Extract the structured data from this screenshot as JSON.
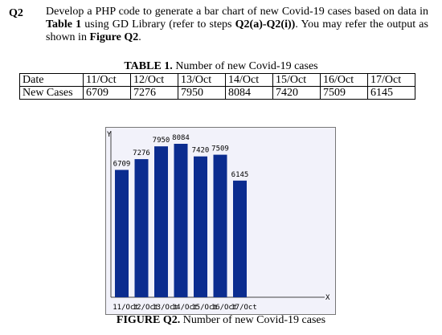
{
  "question": {
    "label": "Q2",
    "text_1": "Develop a PHP code to generate a bar chart of new Covid-19 cases based on data in ",
    "text_b1": "Table 1",
    "text_2": " using GD Library (refer to steps ",
    "text_b2": "Q2(a)-Q2(i))",
    "text_3": ". You may refer the output as shown in ",
    "text_b3": "Figure Q2",
    "text_4": "."
  },
  "table": {
    "caption_bold": "TABLE 1.",
    "caption_rest": " Number of new Covid-19 cases",
    "row_label_date": "Date",
    "row_label_cases": "New Cases",
    "dates": [
      "11/Oct",
      "12/Oct",
      "13/Oct",
      "14/Oct",
      "15/Oct",
      "16/Oct",
      "17/Oct"
    ],
    "cases": [
      "6709",
      "7276",
      "7950",
      "8084",
      "7420",
      "7509",
      "6145"
    ]
  },
  "chart_data": {
    "type": "bar",
    "categories": [
      "11/Oct",
      "12/Oct",
      "13/Oct",
      "14/Oct",
      "15/Oct",
      "16/Oct",
      "17/Oct"
    ],
    "values": [
      6709,
      7276,
      7950,
      8084,
      7420,
      7509,
      6145
    ],
    "title": "",
    "xlabel": "X",
    "ylabel": "Y",
    "bar_color": "#0b2c8f",
    "background": "#f2f2fa",
    "axis_color": "#444444"
  },
  "figure": {
    "caption_bold": "FIGURE Q2.",
    "caption_rest": " Number of new Covid-19 cases"
  }
}
